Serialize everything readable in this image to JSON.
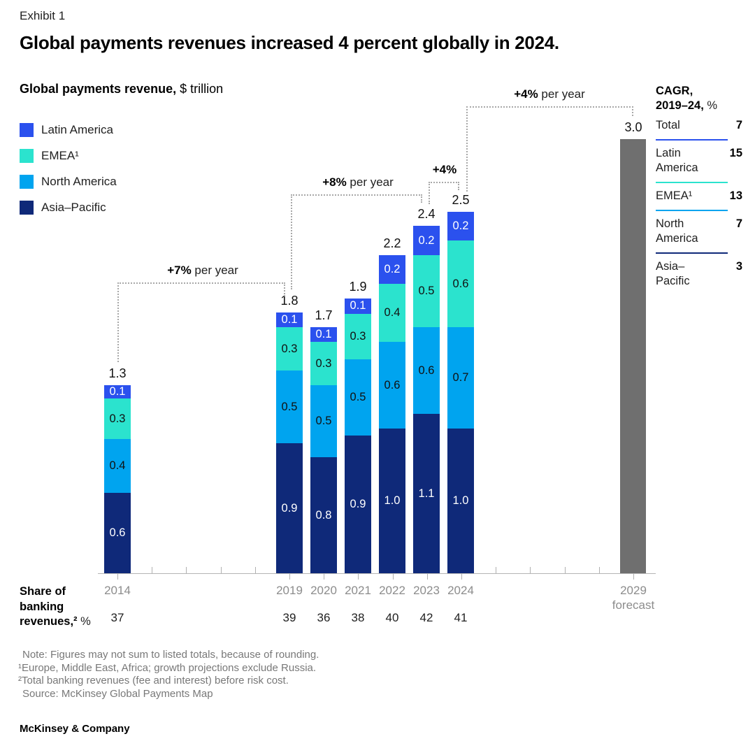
{
  "exhibit_label": "Exhibit 1",
  "title": "Global payments revenues increased 4 percent globally in 2024.",
  "chart_header": {
    "bold": "Global payments revenue,",
    "unit": " $ trillion"
  },
  "legend": [
    {
      "label": "Latin America",
      "color": "#2B51EE"
    },
    {
      "label": "EMEA¹",
      "color": "#2BE3CE"
    },
    {
      "label": "North America",
      "color": "#00A4EF"
    },
    {
      "label": "Asia–Pacific",
      "color": "#0F2979"
    }
  ],
  "cagr_panel": {
    "heading_line1": "CAGR,",
    "heading_bold2": "2019–24,",
    "heading_unit": " %",
    "rows": [
      {
        "label": "Total",
        "value": "7",
        "divider": null
      },
      {
        "label": "Latin America",
        "value": "15",
        "divider": "#2B51EE"
      },
      {
        "label": "EMEA¹",
        "value": "13",
        "divider": "#2BE3CE"
      },
      {
        "label": "North America",
        "value": "7",
        "divider": "#00A4EF"
      },
      {
        "label": "Asia–Pacific",
        "value": "3",
        "divider": "#0F2979"
      }
    ]
  },
  "chart_data": {
    "type": "bar",
    "stacked": true,
    "title": "Global payments revenue, $ trillion",
    "ylabel": "$ trillion",
    "categories": [
      "2014",
      "2019",
      "2020",
      "2021",
      "2022",
      "2023",
      "2024"
    ],
    "series": [
      {
        "name": "Asia–Pacific",
        "color": "#0F2979",
        "label_color": "#ffffff",
        "values": [
          0.6,
          0.9,
          0.8,
          0.9,
          1.0,
          1.1,
          1.0
        ]
      },
      {
        "name": "North America",
        "color": "#00A4EF",
        "label_color": "#111111",
        "values": [
          0.4,
          0.5,
          0.5,
          0.5,
          0.6,
          0.6,
          0.7
        ]
      },
      {
        "name": "EMEA¹",
        "color": "#2BE3CE",
        "label_color": "#111111",
        "values": [
          0.3,
          0.3,
          0.3,
          0.3,
          0.4,
          0.5,
          0.6
        ]
      },
      {
        "name": "Latin America",
        "color": "#2B51EE",
        "label_color": "#ffffff",
        "values": [
          0.1,
          0.1,
          0.1,
          0.1,
          0.2,
          0.2,
          0.2
        ]
      }
    ],
    "totals": [
      1.3,
      1.8,
      1.7,
      1.9,
      2.2,
      2.4,
      2.5
    ],
    "forecast_bar": {
      "category": "2029",
      "sublabel": "forecast",
      "total": 3.0,
      "color": "#6F6F6F"
    },
    "growth_annotations": [
      {
        "bold": "+7%",
        "rest": " per year",
        "from": "2014",
        "to": "2019"
      },
      {
        "bold": "+8%",
        "rest": " per year",
        "from": "2019",
        "to": "2023"
      },
      {
        "bold": "+4%",
        "rest": "",
        "from": "2023",
        "to": "2024"
      },
      {
        "bold": "+4%",
        "rest": " per year",
        "from": "2024",
        "to": "2029"
      }
    ],
    "axis_years_ticks": [
      "2014",
      "2015",
      "2016",
      "2017",
      "2018",
      "2019",
      "2020",
      "2021",
      "2022",
      "2023",
      "2024",
      "2025",
      "2026",
      "2027",
      "2028",
      "2029"
    ]
  },
  "share_row": {
    "label_bold": "Share of banking revenues,²",
    "label_unit": " %",
    "values": [
      37,
      39,
      36,
      38,
      40,
      42,
      41
    ]
  },
  "footnotes": [
    "Note: Figures may not sum to listed totals, because of rounding.",
    "¹Europe, Middle East, Africa; growth projections exclude Russia.",
    "²Total banking revenues (fee and interest) before risk cost.",
    "Source: McKinsey Global Payments Map"
  ],
  "footer": "McKinsey & Company"
}
